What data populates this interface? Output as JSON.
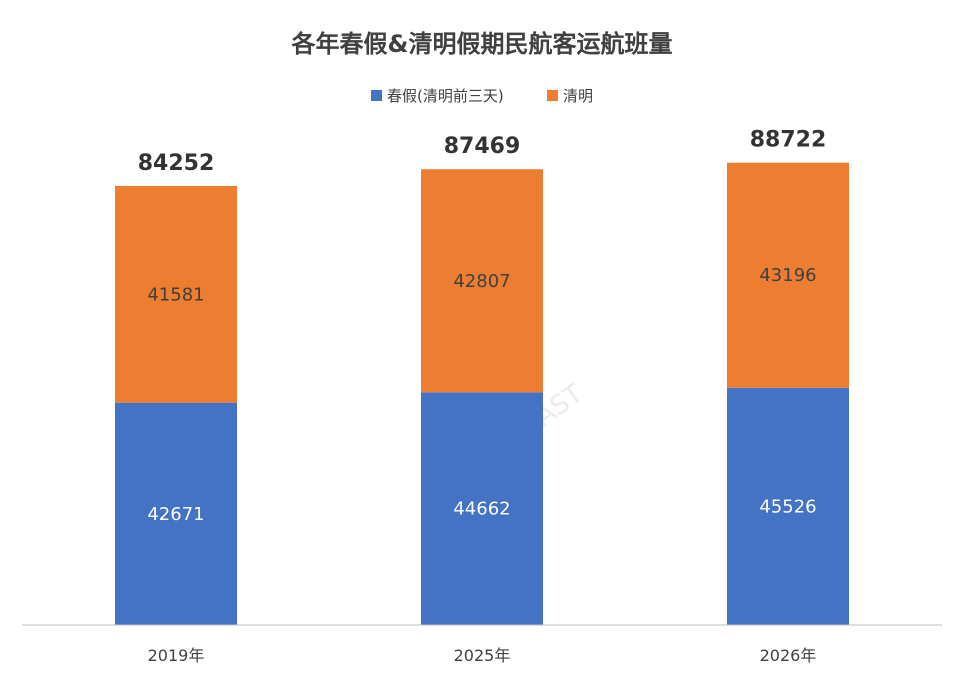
{
  "chart_data": {
    "type": "bar",
    "stacked": true,
    "title": "各年春假&清明假期民航客运航班量",
    "categories": [
      "2019年",
      "2025年",
      "2026年"
    ],
    "series": [
      {
        "name": "春假(清明前三天)",
        "color": "#4472C4",
        "label_color": "#ffffff",
        "values": [
          42671,
          44662,
          45526
        ]
      },
      {
        "name": "清明",
        "color": "#ED7D31",
        "label_color": "#404040",
        "values": [
          41581,
          42807,
          43196
        ]
      }
    ],
    "totals": [
      84252,
      87469,
      88722
    ],
    "ylim": [
      0,
      95000
    ],
    "grid": false,
    "legend_position": "top-center"
  },
  "watermark": "航班管家 DAST"
}
